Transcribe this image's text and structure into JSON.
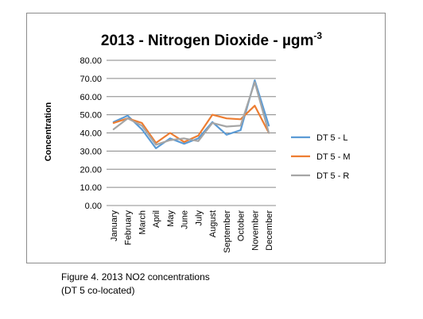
{
  "chart_data": {
    "type": "line",
    "title_main": "2013 - Nitrogen Dioxide - µgm",
    "title_sup": "-3",
    "xlabel": "",
    "ylabel": "Concentration",
    "ylim": [
      0,
      80
    ],
    "yticks": [
      "0.00",
      "10.00",
      "20.00",
      "30.00",
      "40.00",
      "50.00",
      "60.00",
      "70.00",
      "80.00"
    ],
    "grid": true,
    "legend_position": "right",
    "categories": [
      "January",
      "February",
      "March",
      "April",
      "May",
      "June",
      "July",
      "August",
      "September",
      "October",
      "November",
      "December"
    ],
    "series": [
      {
        "name": "DT 5 - L",
        "color": "#5b9bd5",
        "values": [
          46,
          49.5,
          42,
          31.5,
          37,
          34,
          37,
          46,
          39,
          41.5,
          69,
          44
        ]
      },
      {
        "name": "DT 5 - M",
        "color": "#ed7d31",
        "values": [
          45.5,
          48,
          45.5,
          34.5,
          40,
          35,
          38.5,
          50,
          48,
          47.5,
          55,
          40
        ]
      },
      {
        "name": "DT 5 - R",
        "color": "#a5a5a5",
        "values": [
          42,
          48,
          44,
          33.5,
          36,
          37,
          35.5,
          45.5,
          43.5,
          44,
          68,
          40
        ]
      }
    ]
  },
  "caption": {
    "line1": "Figure 4. 2013 NO2 concentrations",
    "line2": "(DT 5 co-located)"
  }
}
